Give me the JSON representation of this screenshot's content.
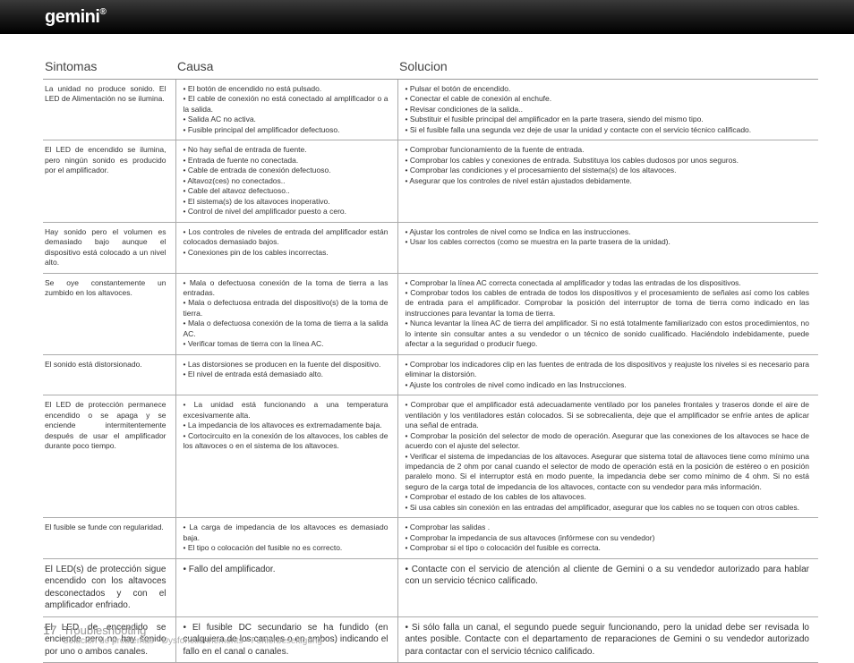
{
  "brand": "gemini",
  "headers": {
    "sintomas": "Sintomas",
    "causa": "Causa",
    "solucion": "Solucion"
  },
  "rows": [
    {
      "s": "La unidad no produce sonido. El LED de Alimentación no se ilumina.",
      "c": [
        "El botón de encendido no está pulsado.",
        "El cable de conexión no está conectado al amplificador o a la salida.",
        "Salida AC no activa.",
        "Fusible principal del amplificador defectuoso."
      ],
      "o": [
        "Pulsar el botón de encendido.",
        "Conectar el cable de conexión al enchufe.",
        "Revisar condiciones de la salida..",
        "Substituir el fusible principal del amplificador en la parte trasera, siendo del mismo tipo.",
        "Si el fusible falla una segunda vez deje de usar la unidad y contacte con el servicio técnico calificado."
      ]
    },
    {
      "s": "El LED de encendido se ilumina, pero ningún sonido es producido por el amplificador.",
      "c": [
        "No hay señal de entrada de fuente.",
        "Entrada de fuente no conectada.",
        "Cable de entrada de conexión defectuoso.",
        "Altavoz(ces) no conectados..",
        "Cable del altavoz defectuoso..",
        "El sistema(s) de los altavoces inoperativo.",
        "Control de nivel del amplificador puesto a cero."
      ],
      "o": [
        "Comprobar funcionamiento de la fuente de entrada.",
        "Comprobar los cables y conexiones de entrada. Substituya los cables dudosos por unos seguros.",
        "Comprobar las condiciones y el procesamiento del sistema(s) de los altavoces.",
        "Asegurar que los controles de nivel están ajustados debidamente."
      ]
    },
    {
      "s": "Hay sonido pero el volumen es demasiado bajo aunque el dispositivo está colocado a un nivel alto.",
      "c": [
        "Los controles de niveles de entrada del amplificador están colocados demasiado bajos.",
        "Conexiones pin de los cables incorrectas."
      ],
      "o": [
        "Ajustar los controles de nivel como se Indica en las instrucciones.",
        "Usar los cables correctos (como se muestra en la parte trasera de la unidad)."
      ]
    },
    {
      "s": "Se oye constantemente un zumbido en los altavoces.",
      "c": [
        "Mala o defectuosa conexión de la toma de tierra a las entradas.",
        "Mala o defectuosa entrada del dispositivo(s) de la toma de tierra.",
        "Mala o defectuosa conexión  de la toma de tierra a la salida AC.",
        "Verificar tomas de tierra con la línea AC."
      ],
      "o": [
        "Comprobar la línea AC correcta conectada al amplificador y todas las entradas de los dispositivos.",
        "Comprobar todos los cables de entrada de todos los dispositivos y el procesamiento de señales así como los cables de entrada para el amplificador. Comprobar la posición del interruptor de toma de tierra como indicado en las instrucciones para levantar la toma de tierra.",
        "Nunca levantar la línea AC de tierra del amplificador. Si no está totalmente familiarizado con estos procedimientos, no lo intente sin consultar antes a su vendedor o un técnico de sonido cualificado. Haciéndolo indebidamente, puede afectar a la seguridad o producir fuego."
      ]
    },
    {
      "s": "El sonido está distorsionado.",
      "c": [
        "Las distorsiones se producen en la fuente del dispositivo.",
        "El nivel de entrada  está demasiado alto."
      ],
      "o": [
        "Comprobar los indicadores clip en las fuentes de entrada de los dispositivos y reajuste los niveles si es necesario para eliminar la distorsión.",
        "Ajuste los controles de nivel como indicado en las Instrucciones."
      ]
    },
    {
      "s": "El LED de protección permanece encendido o se apaga y se enciende intermitentemente después de usar el amplificador durante poco tiempo.",
      "c": [
        "La unidad está funcionando a una temperatura excesivamente alta.",
        "La impedancia de los altavoces es extremadamente baja.",
        "Cortocircuito en la conexión de los altavoces, los cables de los altavoces o en el sistema de los altavoces."
      ],
      "o": [
        "Comprobar que el amplificador está adecuadamente ventilado por los paneles frontales y traseros donde el aire de ventilación y los ventiladores están colocados. Si se sobrecalienta, deje que el amplificador se enfríe antes de aplicar una señal de entrada.",
        "Comprobar la posición del selector de modo de operación. Asegurar que las conexiones de los altavoces se hace de acuerdo con el ajuste del selector.",
        "Verificar el sistema de impedancias de los altavoces. Asegurar que sistema total de altavoces tiene como mínimo una impedancia de 2 ohm por canal cuando el selector de modo de operación está en la posición de estéreo o en posición paralelo mono. Si el interruptor está en modo puente, la impedancia debe ser como mínimo de 4 ohm. Si no está seguro de la carga total de impedancia de los altavoces, contacte con su vendedor para más información.",
        "Comprobar el estado de los cables de los altavoces.",
        "Si usa cables sin conexión en las entradas del amplificador, asegurar que los cables no se toquen con otros cables."
      ]
    },
    {
      "s": "El fusible se funde con regularidad.",
      "c": [
        "La carga de impedancia de los altavoces es demasiado baja.",
        "El tipo o colocación del fusible no es correcto."
      ],
      "o": [
        "Comprobar las salidas .",
        "Comprobar la impedancia de sus altavoces (infórmese con su vendedor)",
        "Comprobar si el tipo o colocación del fusible es correcta."
      ]
    },
    {
      "s": "El LED(s)  de protección sigue encendido con los altavoces desconectados y con el amplificador enfriado.",
      "c": [
        "Fallo del amplificador."
      ],
      "o": [
        "Contacte con el servicio de atención al cliente de Gemini o a su vendedor autorizado para hablar con un servicio técnico calificado."
      ]
    },
    {
      "s": "El LED de encendido se enciende pero no hay sonido por uno o ambos canales.",
      "c": [
        "El fusible DC secundario se ha fundido (en cualquiera de los canales o en ambos) indicando el fallo en el canal o canales."
      ],
      "o": [
        "Si sólo falla un canal, el segundo puede seguir funcionando, pero la unidad debe ser revisada lo antes posible. Contacte con el departamento de reparaciones de Gemini o su vendedor autorizado para contactar con el servicio técnico calificado."
      ]
    }
  ],
  "footer": {
    "page": "17",
    "title": "Troubleshooting",
    "sub": "Solución de problemas • Dysfonctionnements  • Fehlerbeseitigung"
  },
  "lastTwoFontSize": "10px"
}
